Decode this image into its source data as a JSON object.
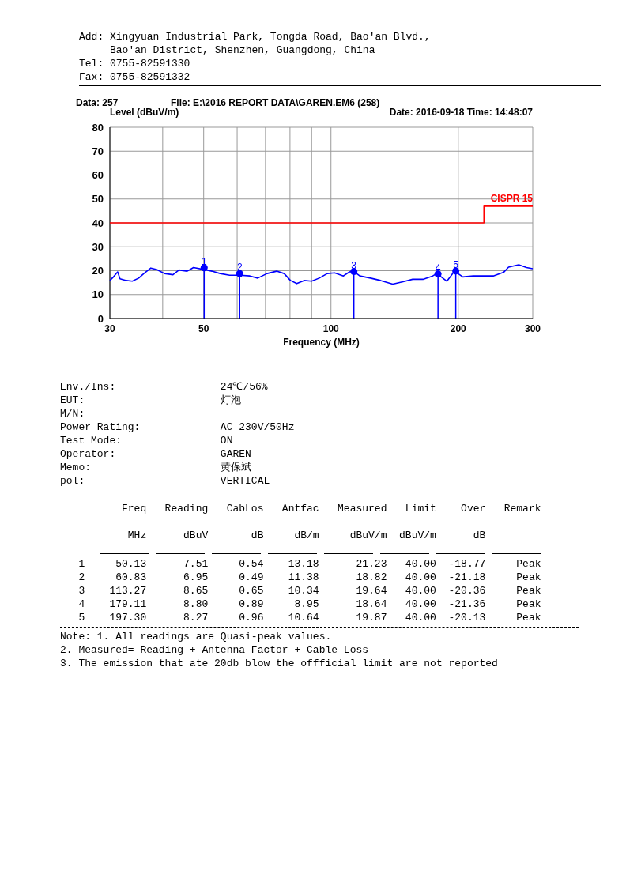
{
  "chart_data": {
    "type": "line",
    "xlabel": "Frequency (MHz)",
    "ylabel": "Level (dBuV/m)",
    "log": "x",
    "xlim": [
      30,
      300
    ],
    "ylim": [
      0,
      80
    ],
    "xticks": [
      30,
      {
        "value": 40,
        "label": null
      },
      50,
      {
        "value": 60,
        "label": null
      },
      {
        "value": 70,
        "label": null
      },
      {
        "value": 80,
        "label": null
      },
      {
        "value": 90,
        "label": null
      },
      100,
      200,
      300
    ],
    "yticks": [
      0,
      10,
      20,
      30,
      40,
      50,
      60,
      70,
      80
    ],
    "grid": true,
    "legend": false,
    "line_style": "solid",
    "series": [
      {
        "color": "#0000ff",
        "x": [
          30,
          30.6,
          31.3,
          31.7,
          32.8,
          33.9,
          35.1,
          36.1,
          37.5,
          38.7,
          40.4,
          42.3,
          43.7,
          45.7,
          47.3,
          50,
          52.3,
          54.7,
          57.6,
          61,
          64.3,
          67.1,
          70.6,
          74.4,
          77.5,
          80.2,
          83,
          86.4,
          90,
          93.8,
          98,
          102,
          107,
          110.6,
          113,
          117,
          124,
          131,
          140,
          148,
          156,
          165,
          174,
          178,
          188,
          196,
          205,
          217,
          229,
          242,
          256,
          263,
          278,
          290,
          300
        ],
        "values": [
          15.9,
          17.4,
          19.5,
          16.6,
          15.9,
          15.6,
          16.9,
          18.8,
          21.1,
          20.5,
          18.8,
          18.3,
          20.3,
          19.8,
          21.3,
          20.5,
          19.8,
          18.8,
          18.1,
          18.1,
          17.8,
          16.9,
          18.8,
          19.8,
          18.8,
          15.9,
          14.6,
          15.9,
          15.6,
          16.9,
          18.8,
          19.1,
          17.8,
          19.5,
          19.8,
          17.8,
          16.9,
          15.9,
          14.4,
          15.4,
          16.4,
          16.4,
          17.8,
          18.8,
          15.6,
          19.8,
          17.4,
          17.8,
          17.8,
          17.8,
          19.3,
          21.5,
          22.5,
          21.3,
          20.8
        ]
      },
      {
        "name": "CISPR 15",
        "color": "#ff0000",
        "x": [
          30,
          230,
          230,
          300
        ],
        "values": [
          40,
          40,
          47,
          47
        ]
      },
      {
        "type": "lollipop",
        "color": "#0000ff",
        "marker": "circle",
        "x": [
          50.13,
          60.83,
          113.27,
          179.11,
          197.3
        ],
        "values": [
          21.23,
          18.82,
          19.64,
          18.64,
          19.87
        ]
      }
    ],
    "annotations": [
      {
        "text": "1",
        "x": 50.13,
        "y": 21.23
      },
      {
        "text": "2",
        "x": 60.83,
        "y": 18.82
      },
      {
        "text": "3",
        "x": 113.27,
        "y": 19.64
      },
      {
        "text": "4",
        "x": 179.11,
        "y": 18.64
      },
      {
        "text": "5",
        "x": 197.3,
        "y": 19.87
      },
      "Add: Xingyuan Industrial Park, Tongda Road, Bao'an Blvd.,",
      "     Bao'an District, Shenzhen, Guangdong, China",
      "Tel: 0755-82591330",
      "Fax: 0755-82591332",
      "Data: 257",
      "File: E:\\2016 REPORT DATA\\GAREN.EM6  (258)",
      "Date: 2016-09-18  Time: 14:48:07",
      "Env./Ins:                 24℃/56%",
      "EUT:                      灯泡",
      "M/N:",
      "Power Rating:             AC 230V/50Hz",
      "Test Mode:                ON",
      "Operator:                 GAREN",
      "Memo:                     黄保斌",
      "pol:                      VERTICAL",
      "          Freq   Reading   CabLos   Antfac   Measured   Limit    Over   Remark",
      "           MHz      dBuV       dB     dB/m     dBuV/m  dBuV/m      dB",
      "   1     50.13      7.51     0.54    13.18      21.23   40.00  -18.77     Peak",
      "   2     60.83      6.95     0.49    11.38      18.82   40.00  -21.18     Peak",
      "   3    113.27      8.65     0.65    10.34      19.64   40.00  -20.36     Peak",
      "   4    179.11      8.80     0.89     8.95      18.64   40.00  -21.36     Peak",
      "   5    197.30      8.27     0.96    10.64      19.87   40.00  -20.13     Peak",
      "Note: 1. All readings are Quasi-peak values.",
      "2. Measured= Reading + Antenna Factor + Cable Loss",
      "3. The emission that ate 20db blow the offficial limit are not reported"
    ]
  }
}
